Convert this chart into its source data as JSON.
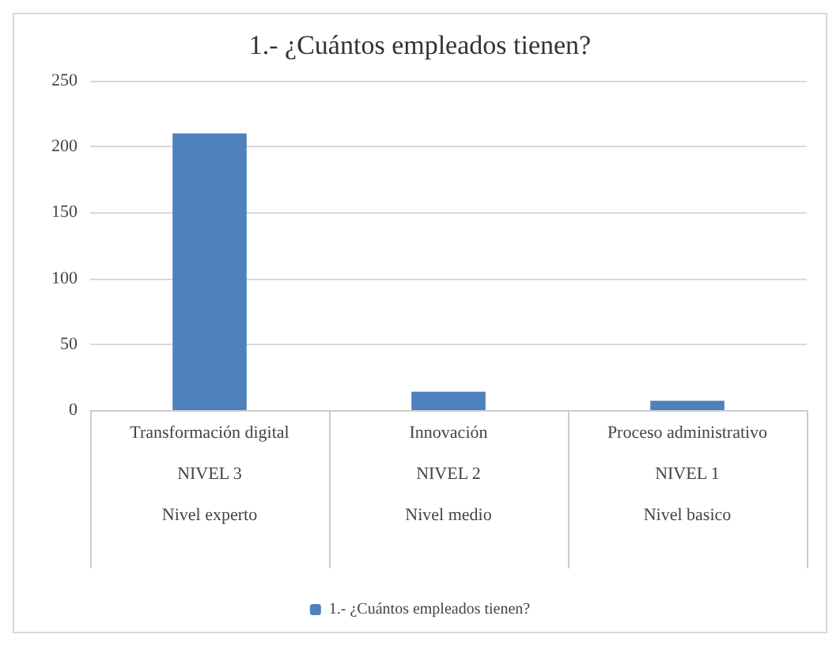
{
  "chart_data": {
    "type": "bar",
    "title": "1.- ¿Cuántos empleados tienen?",
    "categories": [
      "Transformación digital\n\nNIVEL 3\n\nNivel experto",
      "Innovación\n\nNIVEL 2\n\nNivel medio",
      "Proceso administrativo\n\nNIVEL 1\n\nNivel basico"
    ],
    "series": [
      {
        "name": "1.- ¿Cuántos empleados tienen?",
        "color": "#4f81bd",
        "values": [
          210,
          14,
          7
        ]
      }
    ],
    "ylim": [
      0,
      250
    ],
    "yticks": [
      0,
      50,
      100,
      150,
      200,
      250
    ],
    "grid": "y",
    "legend": "bottom"
  }
}
